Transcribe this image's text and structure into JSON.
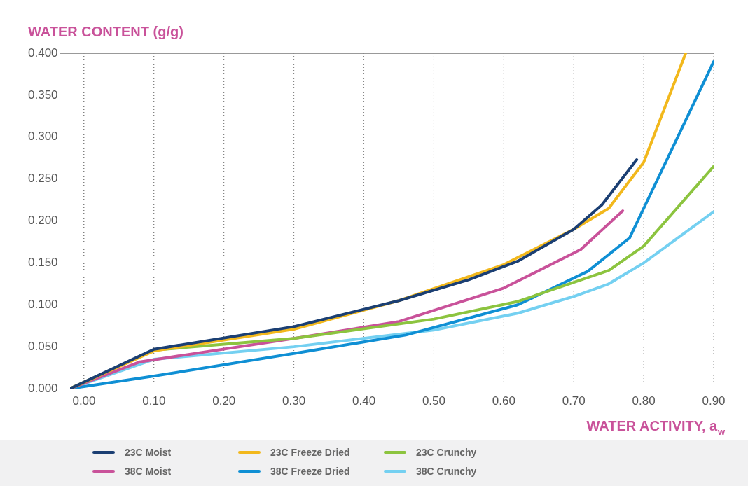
{
  "chart_data": {
    "type": "line",
    "xlabel": "WATER ACTIVITY, a$_{w}$",
    "ylabel": "WATER CONTENT (g/g)",
    "xlim": [
      -0.02,
      0.9
    ],
    "xticks": [
      {
        "value": 0,
        "label": "0.00"
      },
      {
        "value": 0.1,
        "label": "0.10"
      },
      {
        "value": 0.2,
        "label": "0.20"
      },
      {
        "value": 0.3,
        "label": "0.30"
      },
      {
        "value": 0.4,
        "label": "0.40"
      },
      {
        "value": 0.5,
        "label": "0.50"
      },
      {
        "value": 0.6,
        "label": "0.60"
      },
      {
        "value": 0.7,
        "label": "0.70"
      },
      {
        "value": 0.8,
        "label": "0.80"
      },
      {
        "value": 0.9,
        "label": "0.90"
      }
    ],
    "ylim": [
      0,
      0.4
    ],
    "yticks": [
      {
        "value": 0,
        "label": "0.000"
      },
      {
        "value": 0.05,
        "label": "0.050"
      },
      {
        "value": 0.1,
        "label": "0.100"
      },
      {
        "value": 0.15,
        "label": "0.150"
      },
      {
        "value": 0.2,
        "label": "0.200"
      },
      {
        "value": 0.25,
        "label": "0.250"
      },
      {
        "value": 0.3,
        "label": "0.300"
      },
      {
        "value": 0.35,
        "label": "0.350"
      },
      {
        "value": 0.4,
        "label": "0.400"
      }
    ],
    "grid": true,
    "legend": "bottom",
    "marker": "none",
    "line_style": "solid",
    "series": [
      {
        "name": "23C Moist",
        "color": "#1b3f73",
        "x": [
          -0.02,
          0.1,
          0.3,
          0.45,
          0.55,
          0.62,
          0.7,
          0.74,
          0.79
        ],
        "values": [
          0,
          0.047,
          0.074,
          0.105,
          0.13,
          0.152,
          0.19,
          0.219,
          0.273
        ]
      },
      {
        "name": "23C Freeze Dried",
        "color": "#f2b81c",
        "x": [
          -0.02,
          0.1,
          0.3,
          0.45,
          0.6,
          0.7,
          0.75,
          0.8,
          0.86
        ],
        "values": [
          0,
          0.045,
          0.071,
          0.105,
          0.148,
          0.19,
          0.215,
          0.27,
          0.4
        ]
      },
      {
        "name": "23C Crunchy",
        "color": "#8cc43f",
        "x": [
          -0.02,
          0.1,
          0.3,
          0.5,
          0.62,
          0.75,
          0.8,
          0.9
        ],
        "values": [
          0,
          0.046,
          0.06,
          0.083,
          0.104,
          0.141,
          0.17,
          0.265
        ]
      },
      {
        "name": "38C Moist",
        "color": "#c9529a",
        "x": [
          -0.02,
          0.08,
          0.3,
          0.45,
          0.6,
          0.71,
          0.77
        ],
        "values": [
          0,
          0.032,
          0.06,
          0.08,
          0.12,
          0.166,
          0.212
        ]
      },
      {
        "name": "38C Freeze Dried",
        "color": "#0f8fd4",
        "x": [
          -0.02,
          0.1,
          0.3,
          0.46,
          0.62,
          0.72,
          0.78,
          0.9
        ],
        "values": [
          0,
          0.015,
          0.042,
          0.064,
          0.1,
          0.14,
          0.18,
          0.39
        ]
      },
      {
        "name": "38C Crunchy",
        "color": "#74d0f1",
        "x": [
          -0.02,
          0.1,
          0.3,
          0.5,
          0.62,
          0.7,
          0.75,
          0.77,
          0.8,
          0.9
        ],
        "values": [
          0,
          0.035,
          0.05,
          0.07,
          0.09,
          0.11,
          0.125,
          0.135,
          0.15,
          0.211
        ]
      }
    ]
  }
}
